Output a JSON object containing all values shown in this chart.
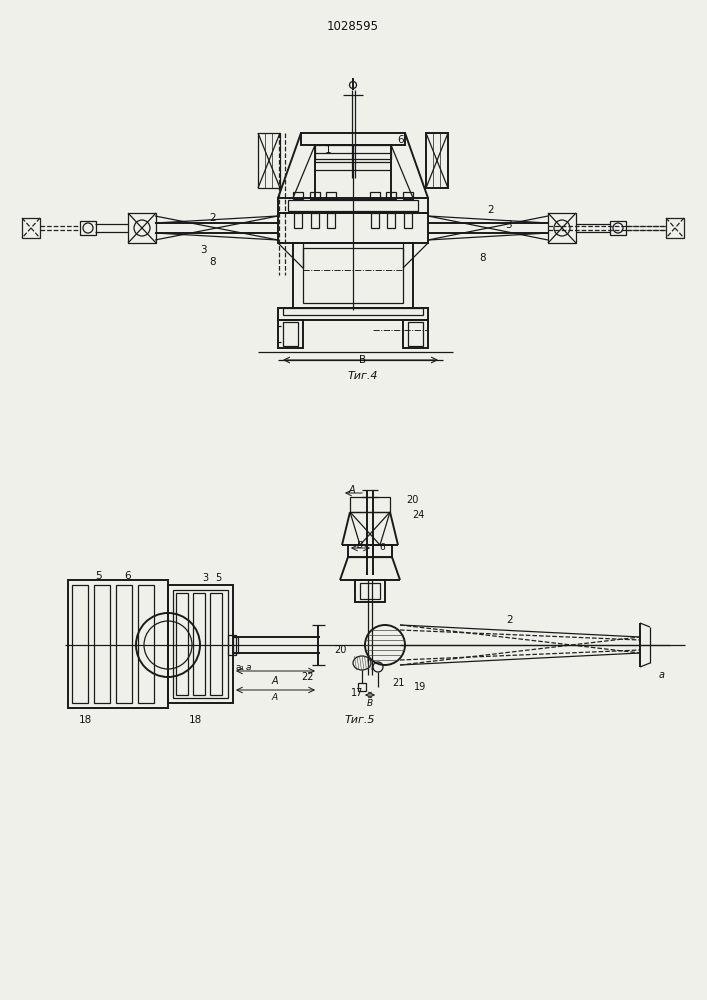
{
  "title": "1028595",
  "fig4_label": "Τиг.4",
  "fig5_label": "Τиг.5",
  "bg_color": "#f0f0ea",
  "line_color": "#1a1a1a",
  "dashed_color": "#222222"
}
